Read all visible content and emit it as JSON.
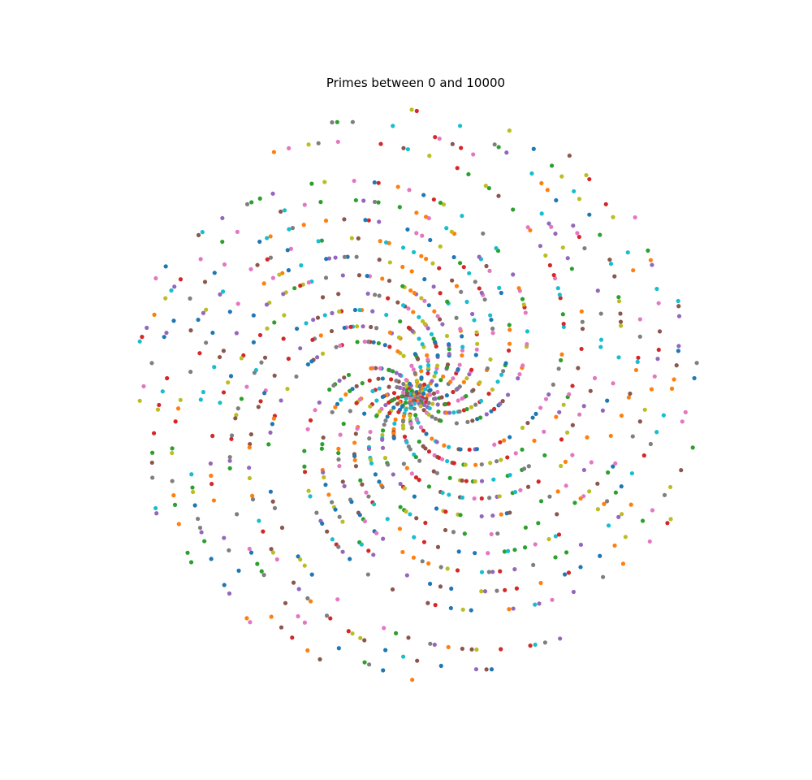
{
  "chart_data": {
    "type": "scatter",
    "title": "Primes between 0 and 10000",
    "range": [
      0,
      10000
    ],
    "coordinates": "polar",
    "point_rule": "each prime p is plotted at angle p radians and radius p",
    "axes_visible": false,
    "grid": false,
    "legend": "none",
    "series_colors": [
      "#1f77b4",
      "#ff7f0e",
      "#2ca02c",
      "#d62728",
      "#9467bd",
      "#8c564b",
      "#e377c2",
      "#7f7f7f",
      "#bcbd22",
      "#17becf"
    ]
  }
}
